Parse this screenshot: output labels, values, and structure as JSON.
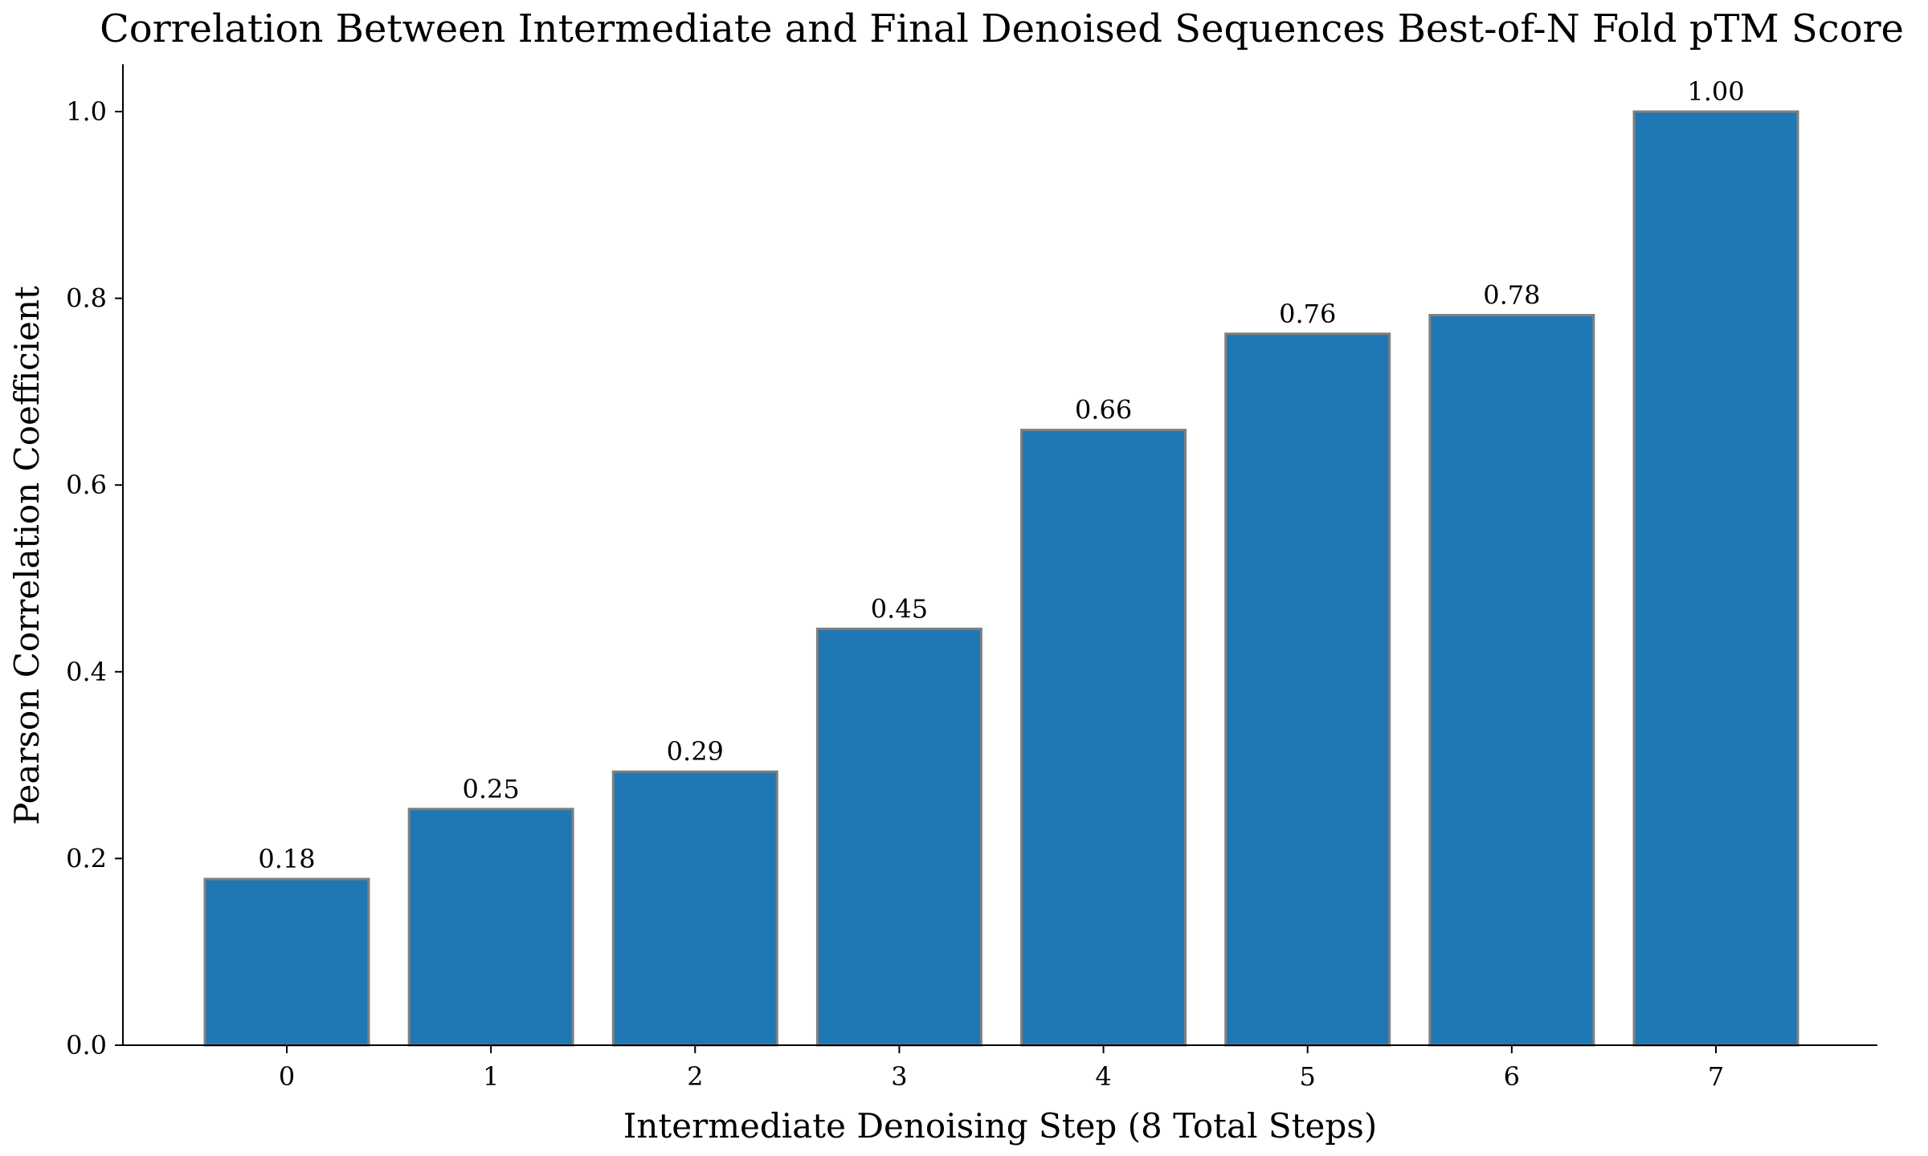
{
  "chart_data": {
    "type": "bar",
    "title": "Correlation Between Intermediate and Final Denoised Sequences Best-of-N Fold pTM Score",
    "xlabel": "Intermediate Denoising Step (8 Total Steps)",
    "ylabel": "Pearson Correlation Coefficient",
    "categories": [
      "0",
      "1",
      "2",
      "3",
      "4",
      "5",
      "6",
      "7"
    ],
    "values": [
      0.178,
      0.253,
      0.293,
      0.446,
      0.659,
      0.762,
      0.782,
      1.0
    ],
    "data_labels": [
      "0.18",
      "0.25",
      "0.29",
      "0.45",
      "0.66",
      "0.76",
      "0.78",
      "1.00"
    ],
    "ylim": [
      0,
      1.05
    ],
    "yticks": [
      "0.0",
      "0.2",
      "0.4",
      "0.6",
      "0.8",
      "1.0"
    ],
    "bar_color": "#1f77b4",
    "bar_edge_color": "#808080",
    "grid": false
  }
}
